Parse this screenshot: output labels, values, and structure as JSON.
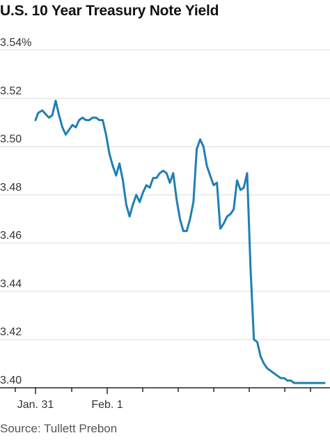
{
  "title": "U.S. 10 Year Treasury Note Yield",
  "source": "Source: Tullett Prebon",
  "chart_data": {
    "type": "line",
    "title": "U.S. 10 Year Treasury Note Yield",
    "xlabel": "",
    "ylabel": "",
    "ylim": [
      3.4,
      3.54
    ],
    "y_ticks": [
      3.4,
      3.42,
      3.44,
      3.46,
      3.48,
      3.5,
      3.52,
      3.54
    ],
    "y_tick_labels": [
      "3.40",
      "3.42",
      "3.44",
      "3.46",
      "3.48",
      "3.50",
      "3.52",
      "3.54%"
    ],
    "x_tick_labels": [
      "Jan. 31",
      "Feb. 1"
    ],
    "grid": true,
    "line_color": "#1f7fb3",
    "series": [
      {
        "x": [
          0,
          0.4,
          1,
          2,
          2.5,
          3,
          3.5,
          4,
          4.5,
          5,
          5.5,
          6,
          6.5,
          7,
          7.5,
          8,
          8.5,
          9,
          9.5,
          10,
          10.5,
          11,
          11.5,
          12,
          12.5,
          13,
          13.5,
          14,
          14.5,
          15,
          15.5,
          16,
          16.5,
          17,
          17.5,
          18,
          18.5,
          19,
          19.5,
          20,
          20.5,
          21,
          21.5,
          22,
          22.5,
          23,
          23.5,
          24,
          24.5,
          25,
          25.5,
          26,
          26.5,
          27,
          27.5,
          28,
          28.5,
          29,
          29.5,
          30,
          30.5,
          31,
          31.5,
          32,
          32.5,
          33,
          33.5,
          34,
          34.5,
          35,
          35.5,
          36,
          36.5,
          37,
          37.5,
          38,
          38.5,
          39,
          39.5,
          40,
          40.5,
          41,
          41.5,
          42,
          42.2,
          42.5,
          42.8,
          43
        ],
        "values": [
          3.511,
          3.514,
          3.515,
          3.512,
          3.513,
          3.519,
          3.513,
          3.508,
          3.505,
          3.507,
          3.509,
          3.508,
          3.511,
          3.512,
          3.511,
          3.511,
          3.512,
          3.512,
          3.511,
          3.511,
          3.505,
          3.497,
          3.492,
          3.488,
          3.493,
          3.486,
          3.476,
          3.471,
          3.476,
          3.48,
          3.477,
          3.481,
          3.484,
          3.483,
          3.487,
          3.487,
          3.489,
          3.49,
          3.489,
          3.485,
          3.489,
          3.478,
          3.47,
          3.465,
          3.465,
          3.47,
          3.477,
          3.499,
          3.503,
          3.5,
          3.492,
          3.488,
          3.484,
          3.485,
          3.466,
          3.468,
          3.471,
          3.472,
          3.474,
          3.486,
          3.482,
          3.483,
          3.489,
          3.45,
          3.42,
          3.419,
          3.413,
          3.41,
          3.408,
          3.407,
          3.406,
          3.405,
          3.404,
          3.404,
          3.403,
          3.403,
          3.402,
          3.402,
          3.402,
          3.402,
          3.402,
          3.402,
          3.402,
          3.402,
          3.402,
          3.402,
          3.402,
          3.402
        ]
      }
    ]
  }
}
